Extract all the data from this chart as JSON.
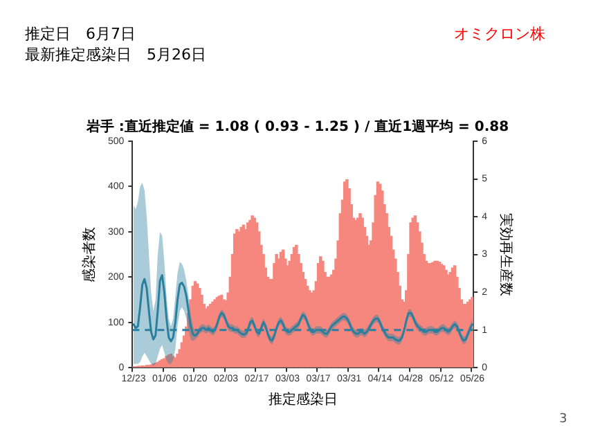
{
  "chart_data": {
    "type": "bar",
    "title": "岩手 :直近推定値 = 1.08 ( 0.93 - 1.25 ) / 直近1週平均 = 0.88",
    "xlabel": "推定感染日",
    "ylabel": "感染者数",
    "y2label": "実効再生産数",
    "annotations": [
      "推定日　6月7日",
      "最新推定感染日　5月26日",
      "オミクロン株",
      "3"
    ],
    "categories": [
      "12/23",
      null,
      null,
      null,
      null,
      null,
      null,
      null,
      null,
      null,
      null,
      null,
      null,
      null,
      "01/06",
      null,
      null,
      null,
      null,
      null,
      null,
      null,
      null,
      null,
      null,
      null,
      null,
      null,
      "01/20",
      null,
      null,
      null,
      null,
      null,
      null,
      null,
      null,
      null,
      null,
      null,
      null,
      null,
      "02/03",
      null,
      null,
      null,
      null,
      null,
      null,
      null,
      null,
      null,
      null,
      null,
      null,
      null,
      "02/17",
      null,
      null,
      null,
      null,
      null,
      null,
      null,
      null,
      null,
      null,
      null,
      null,
      null,
      "03/03",
      null,
      null,
      null,
      null,
      null,
      null,
      null,
      null,
      null,
      null,
      null,
      null,
      null,
      "03/17",
      null,
      null,
      null,
      null,
      null,
      null,
      null,
      null,
      null,
      null,
      null,
      null,
      null,
      "03/31",
      null,
      null,
      null,
      null,
      null,
      null,
      null,
      null,
      null,
      null,
      null,
      null,
      null,
      "04/14",
      null,
      null,
      null,
      null,
      null,
      null,
      null,
      null,
      null,
      null,
      null,
      null,
      null,
      "04/28",
      null,
      null,
      null,
      null,
      null,
      null,
      null,
      null,
      null,
      null,
      null,
      null,
      null,
      "05/12",
      null,
      null,
      null,
      null,
      null,
      null,
      null,
      null,
      null,
      null,
      null,
      null,
      null,
      "05/26"
    ],
    "series": [
      {
        "color": "#f6877f",
        "values": [
          2,
          2,
          3,
          3,
          4,
          3,
          5,
          5,
          6,
          8,
          10,
          12,
          15,
          18,
          20,
          25,
          28,
          30,
          25,
          22,
          30,
          40,
          55,
          70,
          90,
          120,
          150,
          180,
          190,
          185,
          175,
          160,
          140,
          130,
          135,
          140,
          145,
          150,
          155,
          158,
          160,
          150,
          148,
          165,
          200,
          250,
          295,
          305,
          300,
          310,
          315,
          305,
          320,
          325,
          335,
          330,
          320,
          300,
          270,
          250,
          220,
          200,
          195,
          195,
          230,
          250,
          240,
          255,
          260,
          240,
          225,
          235,
          250,
          265,
          270,
          250,
          230,
          210,
          195,
          180,
          170,
          165,
          170,
          190,
          230,
          245,
          235,
          210,
          200,
          200,
          205,
          215,
          240,
          280,
          340,
          370,
          410,
          415,
          395,
          360,
          330,
          325,
          330,
          340,
          330,
          310,
          290,
          270,
          280,
          320,
          380,
          410,
          405,
          390,
          360,
          340,
          310,
          290,
          260,
          240,
          210,
          180,
          150,
          145,
          170,
          250,
          320,
          330,
          335,
          320,
          300,
          275,
          250,
          235,
          230,
          230,
          232,
          235,
          235,
          233,
          228,
          225,
          215,
          205,
          210,
          220,
          225,
          200,
          175,
          150,
          140,
          140,
          145,
          150,
          155
        ]
      },
      {
        "type": "line",
        "axis": "y2",
        "color": "#2b7f9e",
        "values": [
          1.15,
          1.05,
          1.1,
          1.6,
          2.2,
          2.35,
          2.1,
          1.5,
          0.95,
          0.75,
          0.85,
          1.5,
          2.3,
          2.45,
          2.0,
          1.3,
          0.8,
          0.7,
          0.8,
          1.2,
          1.8,
          2.2,
          2.25,
          2.15,
          1.9,
          1.5,
          1.1,
          0.88,
          0.85,
          0.9,
          1.0,
          1.05,
          1.05,
          1.0,
          1.05,
          1.0,
          0.95,
          1.0,
          1.15,
          1.35,
          1.45,
          1.4,
          1.25,
          1.1,
          1.05,
          1.05,
          1.0,
          1.0,
          0.95,
          0.9,
          0.88,
          0.9,
          1.0,
          1.2,
          1.25,
          1.1,
          0.95,
          0.9,
          1.05,
          1.2,
          1.1,
          0.9,
          0.75,
          0.72,
          0.85,
          1.05,
          1.2,
          1.25,
          1.15,
          1.0,
          0.95,
          0.95,
          1.0,
          1.05,
          1.1,
          1.15,
          1.3,
          1.4,
          1.35,
          1.2,
          1.05,
          0.95,
          0.95,
          1.0,
          1.0,
          1.0,
          0.95,
          0.9,
          0.9,
          1.0,
          1.1,
          1.15,
          1.2,
          1.25,
          1.3,
          1.35,
          1.35,
          1.3,
          1.2,
          1.05,
          0.95,
          0.9,
          0.9,
          0.95,
          0.95,
          0.9,
          0.95,
          1.05,
          1.15,
          1.25,
          1.3,
          1.3,
          1.2,
          1.05,
          0.95,
          0.85,
          0.8,
          0.8,
          0.8,
          0.75,
          0.72,
          0.72,
          0.8,
          1.0,
          1.25,
          1.45,
          1.45,
          1.35,
          1.2,
          1.1,
          1.05,
          1.0,
          0.95,
          0.95,
          1.0,
          1.0,
          1.0,
          0.95,
          0.95,
          1.0,
          1.05,
          1.05,
          1.0,
          0.95,
          1.0,
          1.1,
          1.15,
          1.1,
          0.95,
          0.8,
          0.72,
          0.75,
          0.9,
          1.05,
          1.15
        ],
        "lower": [
          0.1,
          0.1,
          0.1,
          0.15,
          0.3,
          0.4,
          0.3,
          0.2,
          0.1,
          0.05,
          0.1,
          0.3,
          0.5,
          0.6,
          0.4,
          0.2,
          0.1,
          0.1,
          0.2,
          0.5,
          1.1,
          1.5,
          1.6,
          1.5,
          1.3,
          1.0,
          0.75,
          0.7,
          0.75,
          0.8,
          0.9,
          0.95,
          0.95,
          0.9,
          0.95,
          0.9,
          0.85,
          0.9,
          1.05,
          1.25,
          1.35,
          1.3,
          1.15,
          1.0,
          0.95,
          0.95,
          0.9,
          0.9,
          0.85,
          0.8,
          0.78,
          0.8,
          0.9,
          1.1,
          1.15,
          1.0,
          0.85,
          0.8,
          0.95,
          1.1,
          1.0,
          0.8,
          0.65,
          0.62,
          0.75,
          0.95,
          1.1,
          1.15,
          1.05,
          0.9,
          0.85,
          0.85,
          0.9,
          0.95,
          1.0,
          1.05,
          1.2,
          1.3,
          1.25,
          1.1,
          0.95,
          0.85,
          0.85,
          0.9,
          0.9,
          0.9,
          0.85,
          0.8,
          0.8,
          0.9,
          1.0,
          1.05,
          1.1,
          1.15,
          1.2,
          1.25,
          1.25,
          1.2,
          1.1,
          0.95,
          0.85,
          0.8,
          0.8,
          0.85,
          0.85,
          0.8,
          0.85,
          0.95,
          1.05,
          1.15,
          1.2,
          1.2,
          1.1,
          0.95,
          0.85,
          0.75,
          0.7,
          0.7,
          0.7,
          0.65,
          0.62,
          0.62,
          0.7,
          0.9,
          1.15,
          1.35,
          1.35,
          1.25,
          1.1,
          1.0,
          0.95,
          0.9,
          0.85,
          0.85,
          0.9,
          0.9,
          0.9,
          0.85,
          0.85,
          0.9,
          0.95,
          0.95,
          0.9,
          0.85,
          0.9,
          1.0,
          1.05,
          1.0,
          0.85,
          0.7,
          0.62,
          0.65,
          0.8,
          0.95,
          1.0
        ],
        "upper": [
          4.3,
          4.2,
          4.4,
          4.8,
          4.9,
          4.7,
          4.0,
          3.0,
          2.0,
          1.5,
          1.8,
          3.0,
          3.6,
          3.5,
          2.8,
          1.9,
          1.3,
          1.1,
          1.3,
          1.9,
          2.5,
          2.8,
          2.75,
          2.6,
          2.3,
          1.9,
          1.4,
          1.1,
          0.95,
          1.0,
          1.1,
          1.15,
          1.15,
          1.1,
          1.15,
          1.1,
          1.05,
          1.1,
          1.25,
          1.45,
          1.55,
          1.5,
          1.35,
          1.2,
          1.15,
          1.15,
          1.1,
          1.1,
          1.05,
          1.0,
          0.98,
          1.0,
          1.1,
          1.3,
          1.35,
          1.2,
          1.05,
          1.0,
          1.15,
          1.3,
          1.2,
          1.0,
          0.85,
          0.82,
          0.95,
          1.15,
          1.3,
          1.35,
          1.25,
          1.1,
          1.05,
          1.05,
          1.1,
          1.15,
          1.2,
          1.25,
          1.4,
          1.5,
          1.45,
          1.3,
          1.15,
          1.05,
          1.05,
          1.1,
          1.1,
          1.1,
          1.05,
          1.0,
          1.0,
          1.1,
          1.2,
          1.25,
          1.3,
          1.35,
          1.4,
          1.45,
          1.45,
          1.4,
          1.3,
          1.15,
          1.05,
          1.0,
          1.0,
          1.05,
          1.05,
          1.0,
          1.05,
          1.15,
          1.25,
          1.35,
          1.4,
          1.4,
          1.3,
          1.15,
          1.05,
          0.95,
          0.9,
          0.9,
          0.9,
          0.85,
          0.82,
          0.82,
          0.9,
          1.1,
          1.35,
          1.55,
          1.55,
          1.45,
          1.3,
          1.2,
          1.15,
          1.1,
          1.05,
          1.05,
          1.1,
          1.1,
          1.1,
          1.05,
          1.05,
          1.1,
          1.15,
          1.15,
          1.1,
          1.05,
          1.1,
          1.2,
          1.25,
          1.2,
          1.05,
          0.9,
          0.82,
          0.85,
          1.0,
          1.15,
          1.3
        ]
      }
    ],
    "ylim": [
      0,
      500
    ],
    "yticks": [
      0,
      100,
      200,
      300,
      400,
      500
    ],
    "y2lim": [
      0,
      6
    ],
    "y2ticks": [
      0,
      1,
      2,
      3,
      4,
      5,
      6
    ],
    "ref_lines": [
      {
        "axis": "y2",
        "value": 1,
        "color": "#2b7f9e",
        "line_style": "dashed"
      }
    ],
    "grid": false,
    "legend": false
  }
}
